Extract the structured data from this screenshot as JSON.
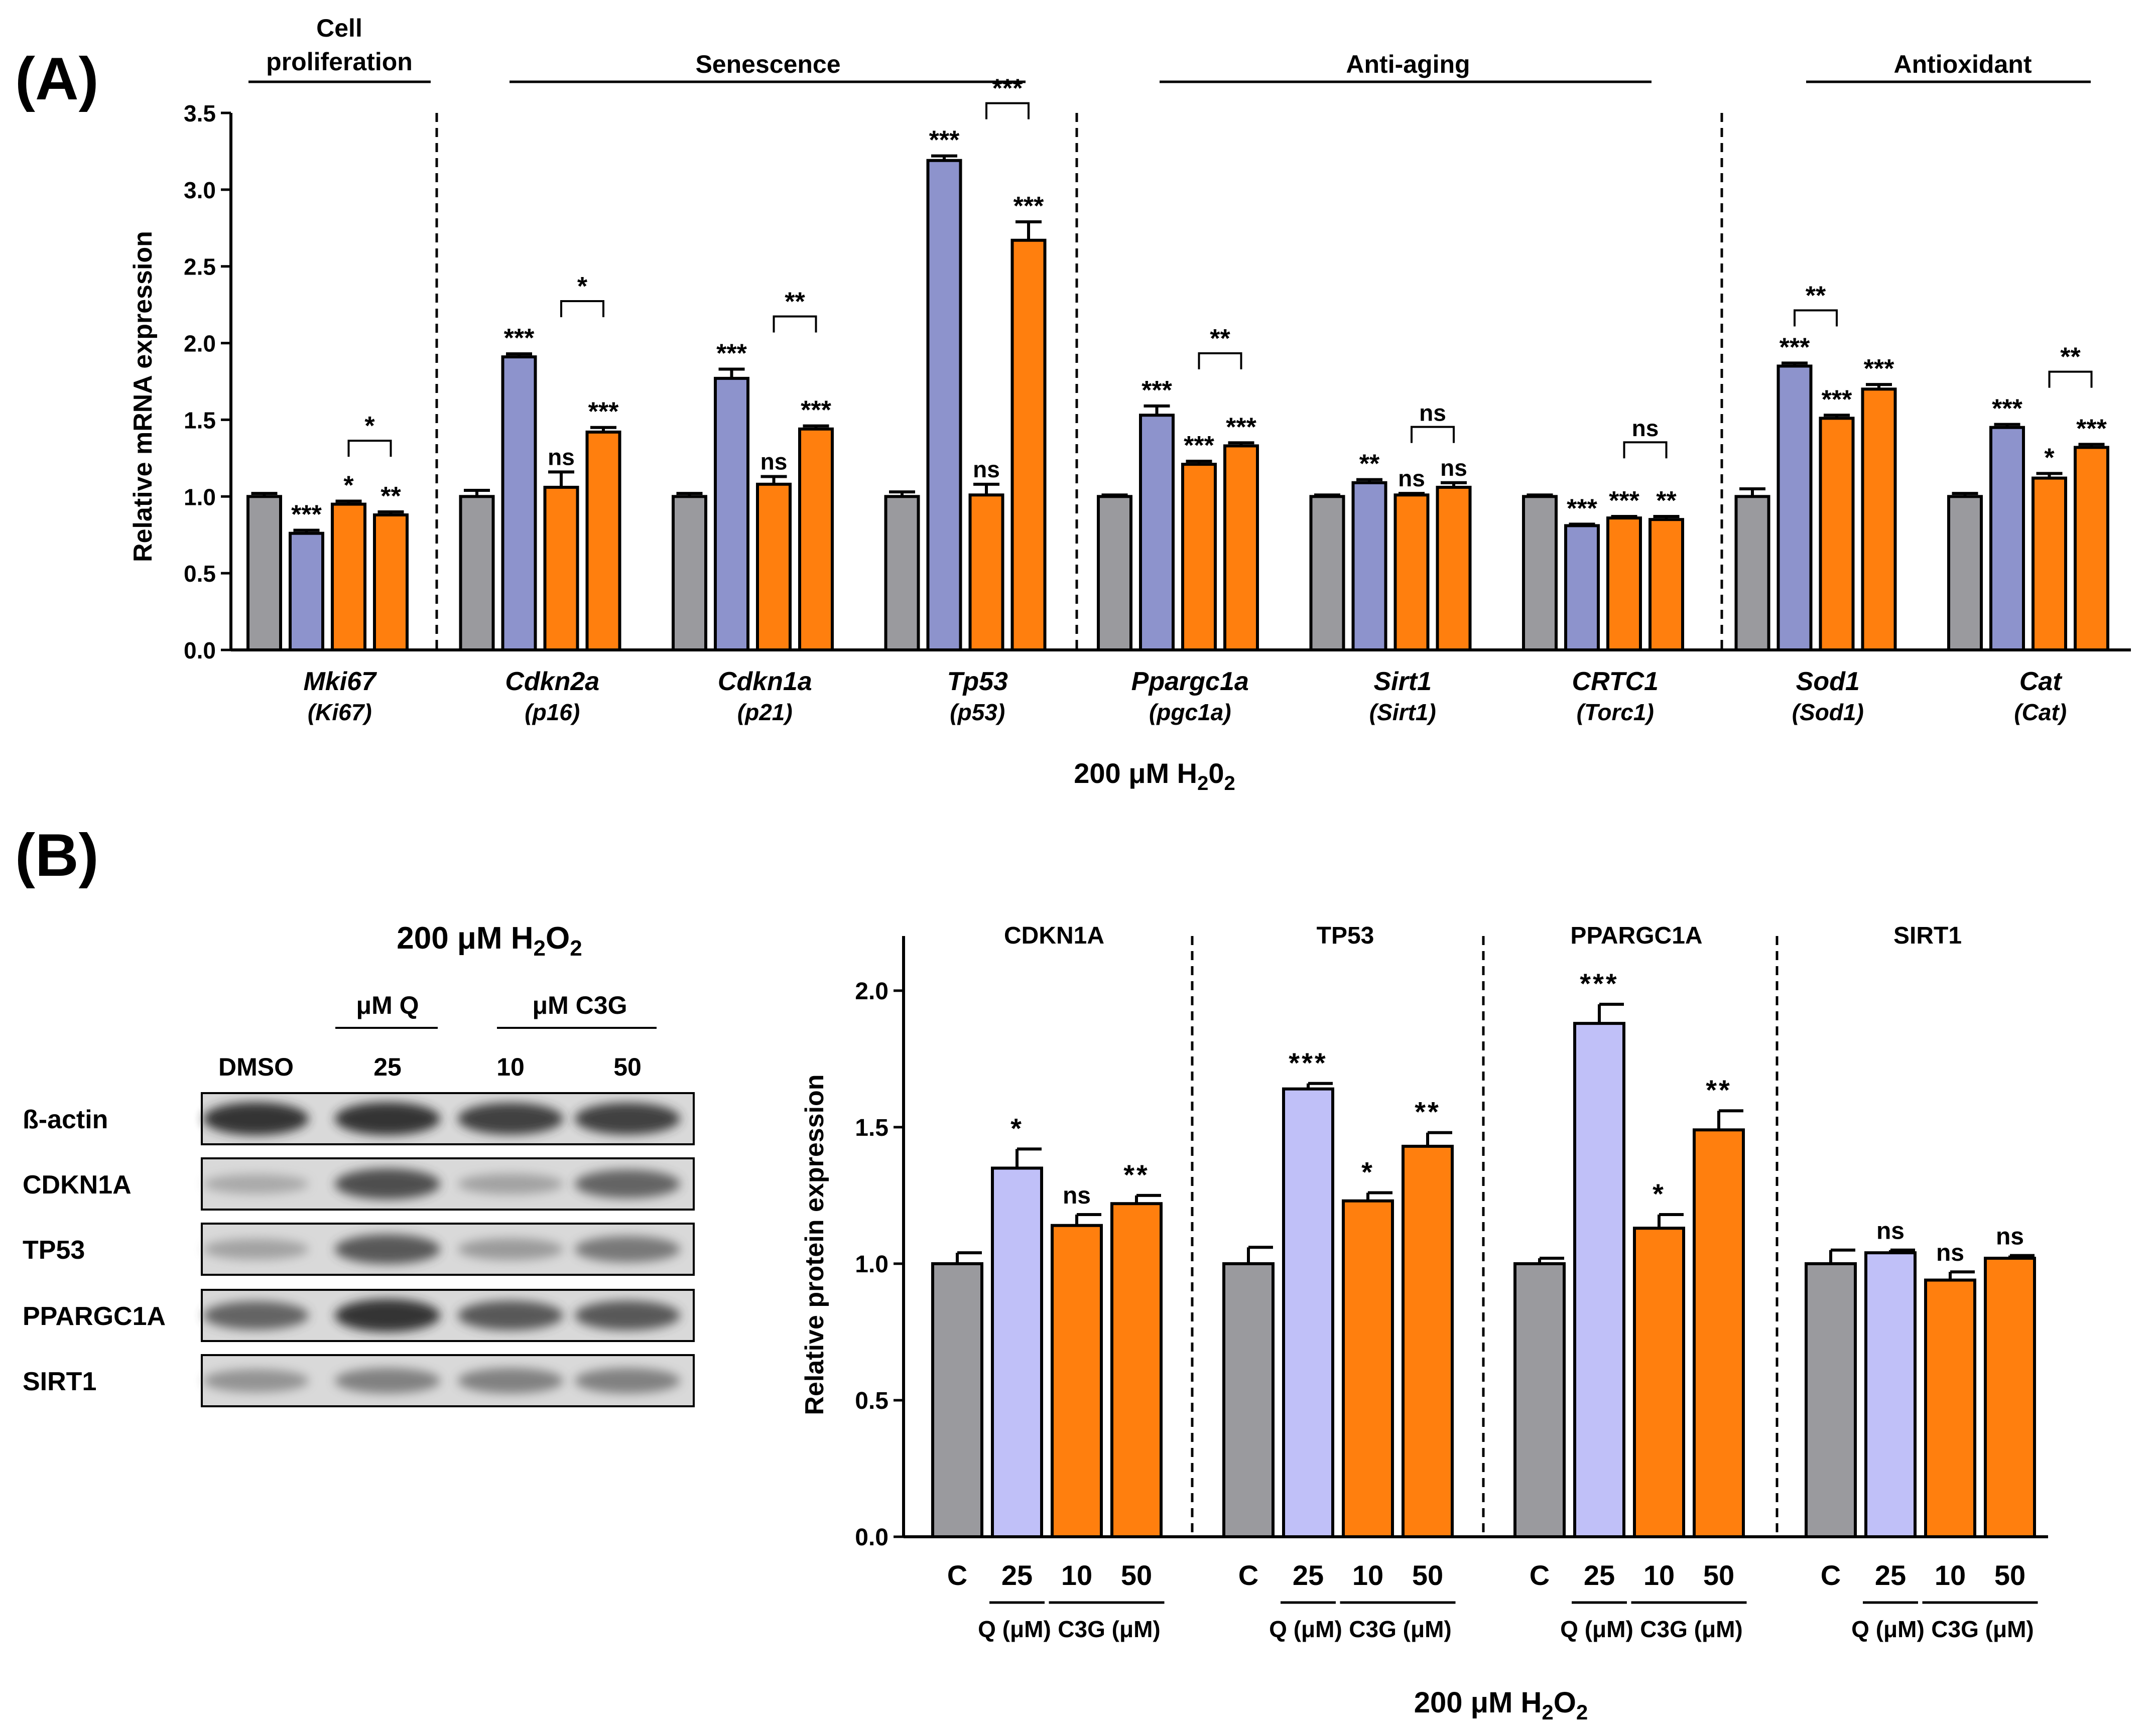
{
  "figure": {
    "panel_a_label": "(A)",
    "panel_b_label": "(B)",
    "colors": {
      "control": "#9a9a9e",
      "quercetin": "#8d93cc",
      "quercetin_b": "#c0c0f8",
      "c3g": "#ff7f0e",
      "axis": "#000000"
    }
  },
  "chart_data": [
    {
      "type": "bar",
      "panel": "A",
      "ylabel": "Relative mRNA expression",
      "xlabel_main": "200 μM H",
      "xlabel_sub1": "2",
      "xlabel_mid": "0",
      "xlabel_sub2": "2",
      "ylim": [
        0,
        3.5
      ],
      "yticks": [
        "0.0",
        "0.5",
        "1.0",
        "1.5",
        "2.0",
        "2.5",
        "3.0",
        "3.5"
      ],
      "series_names": [
        "DMSO",
        "25 μM Q",
        "10 μM C3G",
        "50 μM C3G"
      ],
      "sections": [
        {
          "title_line1": "Cell",
          "title_line2": "proliferation",
          "genes": [
            0
          ]
        },
        {
          "title_line1": "",
          "title_line2": "Senescence",
          "genes": [
            1,
            2,
            3
          ]
        },
        {
          "title_line1": "",
          "title_line2": "Anti-aging",
          "genes": [
            4,
            5,
            6
          ]
        },
        {
          "title_line1": "",
          "title_line2": "Antioxidant",
          "genes": [
            7,
            8
          ]
        }
      ],
      "genes": [
        {
          "gene": "Mki67",
          "alias": "(Ki67)",
          "values": [
            1.0,
            0.76,
            0.95,
            0.88
          ],
          "errors": [
            0.02,
            0.02,
            0.02,
            0.02
          ],
          "stars": [
            "",
            "***",
            "*",
            "**"
          ],
          "bracket": {
            "from": 2,
            "to": 3,
            "label": "*"
          }
        },
        {
          "gene": "Cdkn2a",
          "alias": "(p16)",
          "values": [
            1.0,
            1.91,
            1.06,
            1.42
          ],
          "errors": [
            0.04,
            0.02,
            0.1,
            0.03
          ],
          "stars": [
            "",
            "***",
            "ns",
            "***"
          ],
          "bracket": {
            "from": 2,
            "to": 3,
            "label": "*"
          }
        },
        {
          "gene": "Cdkn1a",
          "alias": "(p21)",
          "values": [
            1.0,
            1.77,
            1.08,
            1.44
          ],
          "errors": [
            0.02,
            0.06,
            0.05,
            0.02
          ],
          "stars": [
            "",
            "***",
            "ns",
            "***"
          ],
          "bracket": {
            "from": 2,
            "to": 3,
            "label": "**"
          }
        },
        {
          "gene": "Tp53",
          "alias": "(p53)",
          "values": [
            1.0,
            3.19,
            1.01,
            2.67
          ],
          "errors": [
            0.03,
            0.03,
            0.07,
            0.12
          ],
          "stars": [
            "",
            "***",
            "ns",
            "***"
          ],
          "bracket": {
            "from": 2,
            "to": 3,
            "label": "***"
          }
        },
        {
          "gene": "Ppargc1a",
          "alias": "(pgc1a)",
          "values": [
            1.0,
            1.53,
            1.21,
            1.33
          ],
          "errors": [
            0.01,
            0.06,
            0.02,
            0.02
          ],
          "stars": [
            "",
            "***",
            "***",
            "***"
          ],
          "bracket": {
            "from": 2,
            "to": 3,
            "label": "**"
          }
        },
        {
          "gene": "Sirt1",
          "alias": "(Sirt1)",
          "values": [
            1.0,
            1.09,
            1.01,
            1.06
          ],
          "errors": [
            0.01,
            0.02,
            0.01,
            0.03
          ],
          "stars": [
            "",
            "**",
            "ns",
            "ns"
          ],
          "bracket": {
            "from": 2,
            "to": 3,
            "label": "ns"
          }
        },
        {
          "gene": "CRTC1",
          "alias": "(Torc1)",
          "values": [
            1.0,
            0.81,
            0.86,
            0.85
          ],
          "errors": [
            0.01,
            0.01,
            0.01,
            0.02
          ],
          "stars": [
            "",
            "***",
            "***",
            "**"
          ],
          "bracket": {
            "from": 2,
            "to": 3,
            "label": "ns"
          }
        },
        {
          "gene": "Sod1",
          "alias": "(Sod1)",
          "values": [
            1.0,
            1.85,
            1.51,
            1.7
          ],
          "errors": [
            0.05,
            0.02,
            0.02,
            0.03
          ],
          "stars": [
            "",
            "***",
            "***",
            "***"
          ],
          "bracket": {
            "from": 1,
            "to": 2,
            "label": "**"
          }
        },
        {
          "gene": "Cat",
          "alias": "(Cat)",
          "values": [
            1.0,
            1.45,
            1.12,
            1.32
          ],
          "errors": [
            0.02,
            0.02,
            0.03,
            0.02
          ],
          "stars": [
            "",
            "***",
            "*",
            "***"
          ],
          "bracket": {
            "from": 2,
            "to": 3,
            "label": "**"
          }
        }
      ]
    },
    {
      "type": "bar",
      "panel": "B",
      "ylabel": "Relative protein expression",
      "xlabel_main": "200 μM H",
      "xlabel_sub1": "2",
      "xlabel_mid": "O",
      "xlabel_sub2": "2",
      "ylim": [
        0,
        2.2
      ],
      "yticks": [
        "0.0",
        "0.5",
        "1.0",
        "1.5",
        "2.0"
      ],
      "categories": [
        "C",
        "25",
        "10",
        "50"
      ],
      "q_group_label": "Q (μM)",
      "c3g_group_label": "C3G (μM)",
      "proteins": [
        {
          "name": "CDKN1A",
          "values": [
            1.0,
            1.35,
            1.14,
            1.22
          ],
          "errors": [
            0.04,
            0.07,
            0.04,
            0.03
          ],
          "stars": [
            "",
            "*",
            "ns",
            "**"
          ]
        },
        {
          "name": "TP53",
          "values": [
            1.0,
            1.64,
            1.23,
            1.43
          ],
          "errors": [
            0.06,
            0.02,
            0.03,
            0.05
          ],
          "stars": [
            "",
            "***",
            "*",
            "**"
          ]
        },
        {
          "name": "PPARGC1A",
          "values": [
            1.0,
            1.88,
            1.13,
            1.49
          ],
          "errors": [
            0.02,
            0.07,
            0.05,
            0.07
          ],
          "stars": [
            "",
            "***",
            "*",
            "**"
          ]
        },
        {
          "name": "SIRT1",
          "values": [
            1.0,
            1.04,
            0.94,
            1.02
          ],
          "errors": [
            0.05,
            0.01,
            0.03,
            0.01
          ],
          "stars": [
            "",
            "ns",
            "ns",
            "ns"
          ]
        }
      ]
    }
  ],
  "blot": {
    "title_main": "200 μM H",
    "title_sub1": "2",
    "title_mid": "O",
    "title_sub2": "2",
    "q_header": "μM Q",
    "c3g_header": "μM C3G",
    "lanes": [
      "DMSO",
      "25",
      "10",
      "50"
    ],
    "rows": [
      {
        "label": "ß-actin",
        "intensities": [
          0.95,
          0.95,
          0.9,
          0.9
        ]
      },
      {
        "label": "CDKN1A",
        "intensities": [
          0.35,
          0.85,
          0.4,
          0.75
        ]
      },
      {
        "label": "TP53",
        "intensities": [
          0.4,
          0.8,
          0.45,
          0.65
        ]
      },
      {
        "label": "PPARGC1A",
        "intensities": [
          0.75,
          0.95,
          0.8,
          0.8
        ]
      },
      {
        "label": "SIRT1",
        "intensities": [
          0.5,
          0.6,
          0.6,
          0.6
        ]
      }
    ]
  }
}
